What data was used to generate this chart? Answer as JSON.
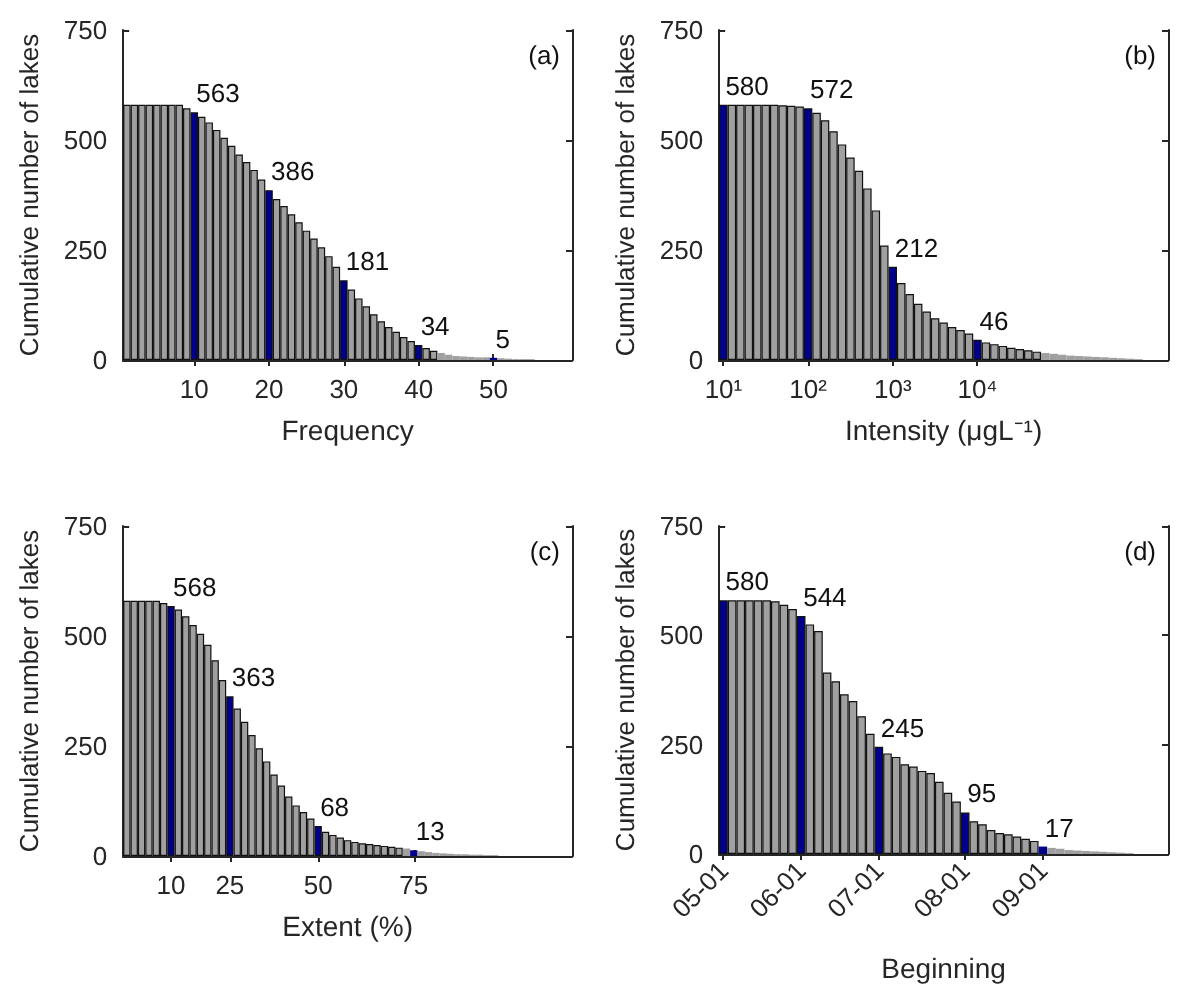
{
  "chart_data": [
    {
      "type": "bar",
      "ylabel": "Cumulative number of lakes",
      "xlabel": "Frequency",
      "annotations": [
        "(a)"
      ],
      "ylim": [
        0,
        750
      ],
      "yticks": [
        0,
        250,
        500,
        750
      ],
      "categories": [
        null,
        null,
        null,
        null,
        null,
        null,
        null,
        null,
        null,
        "10",
        null,
        null,
        null,
        null,
        null,
        null,
        null,
        null,
        null,
        "20",
        null,
        null,
        null,
        null,
        null,
        null,
        null,
        null,
        null,
        "30",
        null,
        null,
        null,
        null,
        null,
        null,
        null,
        null,
        null,
        "40",
        null,
        null,
        null,
        null,
        null,
        null,
        null,
        null,
        null,
        "50",
        null,
        null,
        null,
        null,
        null,
        null,
        null,
        null,
        null,
        null
      ],
      "values": [
        580,
        580,
        580,
        580,
        580,
        580,
        580,
        580,
        572,
        563,
        553,
        540,
        523,
        505,
        487,
        467,
        450,
        432,
        410,
        386,
        366,
        350,
        331,
        313,
        294,
        276,
        256,
        236,
        212,
        181,
        160,
        140,
        122,
        104,
        88,
        75,
        64,
        52,
        43,
        34,
        27,
        21,
        16,
        12,
        9,
        8,
        7,
        6,
        6,
        5,
        4,
        3,
        2,
        2,
        2,
        null,
        null,
        null,
        null,
        null
      ],
      "colors": [
        "#a0a0a0",
        "#a0a0a0",
        "#a0a0a0",
        "#a0a0a0",
        "#a0a0a0",
        "#a0a0a0",
        "#a0a0a0",
        "#a0a0a0",
        "#a0a0a0",
        "#00008b",
        "#a0a0a0",
        "#a0a0a0",
        "#a0a0a0",
        "#a0a0a0",
        "#a0a0a0",
        "#a0a0a0",
        "#a0a0a0",
        "#a0a0a0",
        "#a0a0a0",
        "#00008b",
        "#a0a0a0",
        "#a0a0a0",
        "#a0a0a0",
        "#a0a0a0",
        "#a0a0a0",
        "#a0a0a0",
        "#a0a0a0",
        "#a0a0a0",
        "#a0a0a0",
        "#00008b",
        "#a0a0a0",
        "#a0a0a0",
        "#a0a0a0",
        "#a0a0a0",
        "#a0a0a0",
        "#a0a0a0",
        "#a0a0a0",
        "#a0a0a0",
        "#a0a0a0",
        "#00008b",
        "#a0a0a0",
        "#a0a0a0",
        "#a0a0a0",
        "#a0a0a0",
        "#a0a0a0",
        "#a0a0a0",
        "#a0a0a0",
        "#a0a0a0",
        "#a0a0a0",
        "#00008b",
        "#a0a0a0",
        "#a0a0a0",
        "#a0a0a0",
        "#a0a0a0",
        "#a0a0a0",
        "#a0a0a0",
        "#a0a0a0",
        "#a0a0a0",
        "#a0a0a0",
        "#a0a0a0"
      ],
      "value_labels": [
        null,
        null,
        null,
        null,
        null,
        null,
        null,
        null,
        null,
        "563",
        null,
        null,
        null,
        null,
        null,
        null,
        null,
        null,
        null,
        "386",
        null,
        null,
        null,
        null,
        null,
        null,
        null,
        null,
        null,
        "181",
        null,
        null,
        null,
        null,
        null,
        null,
        null,
        null,
        null,
        "34",
        null,
        null,
        null,
        null,
        null,
        null,
        null,
        null,
        null,
        "5",
        null,
        null,
        null,
        null,
        null,
        null,
        null,
        null,
        null,
        null
      ]
    },
    {
      "type": "bar",
      "ylabel": "Cumulative number of lakes",
      "xlabel": "Intensity (μgL⁻¹)",
      "annotations": [
        "(b)"
      ],
      "ylim": [
        0,
        750
      ],
      "yticks": [
        0,
        250,
        500,
        750
      ],
      "categories": [
        "10¹",
        null,
        null,
        null,
        null,
        null,
        null,
        null,
        null,
        null,
        "10²",
        null,
        null,
        null,
        null,
        null,
        null,
        null,
        null,
        null,
        "10³",
        null,
        null,
        null,
        null,
        null,
        null,
        null,
        null,
        null,
        "10⁴",
        null,
        null,
        null,
        null,
        null,
        null,
        null,
        null,
        null,
        null,
        null,
        null,
        null,
        null,
        null,
        null,
        null,
        null,
        null,
        null,
        null,
        null
      ],
      "values": [
        580,
        580,
        580,
        580,
        580,
        580,
        580,
        579,
        578,
        576,
        572,
        562,
        545,
        520,
        490,
        460,
        430,
        390,
        340,
        260,
        212,
        175,
        150,
        128,
        110,
        95,
        85,
        75,
        68,
        60,
        46,
        40,
        36,
        32,
        28,
        25,
        22,
        19,
        16,
        14,
        12,
        10,
        9,
        8,
        7,
        6,
        5,
        4,
        3,
        2,
        null,
        null,
        null
      ],
      "colors": [
        "#00008b",
        "#a0a0a0",
        "#a0a0a0",
        "#a0a0a0",
        "#a0a0a0",
        "#a0a0a0",
        "#a0a0a0",
        "#a0a0a0",
        "#a0a0a0",
        "#a0a0a0",
        "#00008b",
        "#a0a0a0",
        "#a0a0a0",
        "#a0a0a0",
        "#a0a0a0",
        "#a0a0a0",
        "#a0a0a0",
        "#a0a0a0",
        "#a0a0a0",
        "#a0a0a0",
        "#00008b",
        "#a0a0a0",
        "#a0a0a0",
        "#a0a0a0",
        "#a0a0a0",
        "#a0a0a0",
        "#a0a0a0",
        "#a0a0a0",
        "#a0a0a0",
        "#a0a0a0",
        "#00008b",
        "#a0a0a0",
        "#a0a0a0",
        "#a0a0a0",
        "#a0a0a0",
        "#a0a0a0",
        "#a0a0a0",
        "#a0a0a0",
        "#a0a0a0",
        "#a0a0a0",
        "#a0a0a0",
        "#a0a0a0",
        "#a0a0a0",
        "#a0a0a0",
        "#a0a0a0",
        "#a0a0a0",
        "#a0a0a0",
        "#a0a0a0",
        "#a0a0a0",
        "#a0a0a0",
        "#a0a0a0",
        "#a0a0a0",
        "#a0a0a0"
      ],
      "value_labels": [
        "580",
        null,
        null,
        null,
        null,
        null,
        null,
        null,
        null,
        null,
        "572",
        null,
        null,
        null,
        null,
        null,
        null,
        null,
        null,
        null,
        "212",
        null,
        null,
        null,
        null,
        null,
        null,
        null,
        null,
        null,
        "46",
        null,
        null,
        null,
        null,
        null,
        null,
        null,
        null,
        null,
        null,
        null,
        null,
        null,
        null,
        null,
        null,
        null,
        null,
        null,
        null,
        null,
        null
      ]
    },
    {
      "type": "bar",
      "ylabel": "Cumulative number of lakes",
      "xlabel": "Extent (%)",
      "annotations": [
        "(c)"
      ],
      "ylim": [
        0,
        750
      ],
      "yticks": [
        0,
        250,
        500,
        750
      ],
      "categories": [
        null,
        null,
        null,
        null,
        null,
        null,
        "10",
        null,
        null,
        null,
        null,
        null,
        null,
        null,
        "25",
        null,
        null,
        null,
        null,
        null,
        null,
        null,
        null,
        null,
        null,
        null,
        "50",
        null,
        null,
        null,
        null,
        null,
        null,
        null,
        null,
        null,
        null,
        null,
        null,
        "75",
        null,
        null,
        null,
        null,
        null,
        null,
        null,
        null,
        null,
        null,
        null,
        null,
        null,
        null,
        null,
        null,
        null,
        null,
        null,
        null,
        null
      ],
      "values": [
        580,
        580,
        580,
        580,
        580,
        575,
        568,
        560,
        545,
        525,
        505,
        480,
        445,
        400,
        363,
        335,
        305,
        275,
        245,
        215,
        185,
        160,
        135,
        115,
        100,
        85,
        68,
        55,
        48,
        42,
        36,
        32,
        29,
        27,
        25,
        23,
        21,
        19,
        17,
        13,
        11,
        9,
        7,
        6,
        5,
        4,
        4,
        3,
        3,
        2,
        2,
        null,
        null,
        null,
        null,
        null,
        null,
        null,
        null,
        null,
        null
      ],
      "colors": [
        "#a0a0a0",
        "#a0a0a0",
        "#a0a0a0",
        "#a0a0a0",
        "#a0a0a0",
        "#a0a0a0",
        "#00008b",
        "#a0a0a0",
        "#a0a0a0",
        "#a0a0a0",
        "#a0a0a0",
        "#a0a0a0",
        "#a0a0a0",
        "#a0a0a0",
        "#00008b",
        "#a0a0a0",
        "#a0a0a0",
        "#a0a0a0",
        "#a0a0a0",
        "#a0a0a0",
        "#a0a0a0",
        "#a0a0a0",
        "#a0a0a0",
        "#a0a0a0",
        "#a0a0a0",
        "#a0a0a0",
        "#00008b",
        "#a0a0a0",
        "#a0a0a0",
        "#a0a0a0",
        "#a0a0a0",
        "#a0a0a0",
        "#a0a0a0",
        "#a0a0a0",
        "#a0a0a0",
        "#a0a0a0",
        "#a0a0a0",
        "#a0a0a0",
        "#a0a0a0",
        "#00008b",
        "#a0a0a0",
        "#a0a0a0",
        "#a0a0a0",
        "#a0a0a0",
        "#a0a0a0",
        "#a0a0a0",
        "#a0a0a0",
        "#a0a0a0",
        "#a0a0a0",
        "#a0a0a0",
        "#a0a0a0",
        "#a0a0a0",
        "#a0a0a0",
        "#a0a0a0",
        "#a0a0a0",
        "#a0a0a0",
        "#a0a0a0",
        "#a0a0a0",
        "#a0a0a0",
        "#a0a0a0",
        "#a0a0a0"
      ],
      "value_labels": [
        null,
        null,
        null,
        null,
        null,
        null,
        "568",
        null,
        null,
        null,
        null,
        null,
        null,
        null,
        "363",
        null,
        null,
        null,
        null,
        null,
        null,
        null,
        null,
        null,
        null,
        null,
        "68",
        null,
        null,
        null,
        null,
        null,
        null,
        null,
        null,
        null,
        null,
        null,
        null,
        "13",
        null,
        null,
        null,
        null,
        null,
        null,
        null,
        null,
        null,
        null,
        null,
        null,
        null,
        null,
        null,
        null,
        null,
        null,
        null,
        null,
        null
      ]
    },
    {
      "type": "bar",
      "ylabel": "Cumulative number of lakes",
      "xlabel": "Beginning",
      "annotations": [
        "(d)"
      ],
      "ylim": [
        0,
        750
      ],
      "yticks": [
        0,
        250,
        500,
        750
      ],
      "categories": [
        "05-01",
        null,
        null,
        null,
        null,
        null,
        null,
        null,
        null,
        "06-01",
        null,
        null,
        null,
        null,
        null,
        null,
        null,
        null,
        "07-01",
        null,
        null,
        null,
        null,
        null,
        null,
        null,
        null,
        null,
        "08-01",
        null,
        null,
        null,
        null,
        null,
        null,
        null,
        null,
        "09-01",
        null,
        null,
        null,
        null,
        null,
        null,
        null,
        null,
        null,
        null,
        null,
        null,
        null,
        null
      ],
      "values": [
        580,
        580,
        580,
        580,
        580,
        580,
        578,
        570,
        560,
        544,
        525,
        510,
        415,
        395,
        365,
        350,
        315,
        275,
        245,
        230,
        222,
        205,
        200,
        190,
        185,
        165,
        140,
        120,
        95,
        75,
        68,
        55,
        48,
        45,
        40,
        35,
        30,
        17,
        14,
        12,
        9,
        8,
        7,
        6,
        5,
        4,
        3,
        2,
        null,
        null,
        null,
        null
      ],
      "colors": [
        "#00008b",
        "#a0a0a0",
        "#a0a0a0",
        "#a0a0a0",
        "#a0a0a0",
        "#a0a0a0",
        "#a0a0a0",
        "#a0a0a0",
        "#a0a0a0",
        "#00008b",
        "#a0a0a0",
        "#a0a0a0",
        "#a0a0a0",
        "#a0a0a0",
        "#a0a0a0",
        "#a0a0a0",
        "#a0a0a0",
        "#a0a0a0",
        "#00008b",
        "#a0a0a0",
        "#a0a0a0",
        "#a0a0a0",
        "#a0a0a0",
        "#a0a0a0",
        "#a0a0a0",
        "#a0a0a0",
        "#a0a0a0",
        "#a0a0a0",
        "#00008b",
        "#a0a0a0",
        "#a0a0a0",
        "#a0a0a0",
        "#a0a0a0",
        "#a0a0a0",
        "#a0a0a0",
        "#a0a0a0",
        "#a0a0a0",
        "#00008b",
        "#a0a0a0",
        "#a0a0a0",
        "#a0a0a0",
        "#a0a0a0",
        "#a0a0a0",
        "#a0a0a0",
        "#a0a0a0",
        "#a0a0a0",
        "#a0a0a0",
        "#a0a0a0",
        "#a0a0a0",
        "#a0a0a0",
        "#a0a0a0",
        "#a0a0a0"
      ],
      "value_labels": [
        "580",
        null,
        null,
        null,
        null,
        null,
        null,
        null,
        null,
        "544",
        null,
        null,
        null,
        null,
        null,
        null,
        null,
        null,
        "245",
        null,
        null,
        null,
        null,
        null,
        null,
        null,
        null,
        null,
        "95",
        null,
        null,
        null,
        null,
        null,
        null,
        null,
        null,
        "17",
        null,
        null,
        null,
        null,
        null,
        null,
        null,
        null,
        null,
        null,
        null,
        null,
        null,
        null
      ]
    }
  ]
}
